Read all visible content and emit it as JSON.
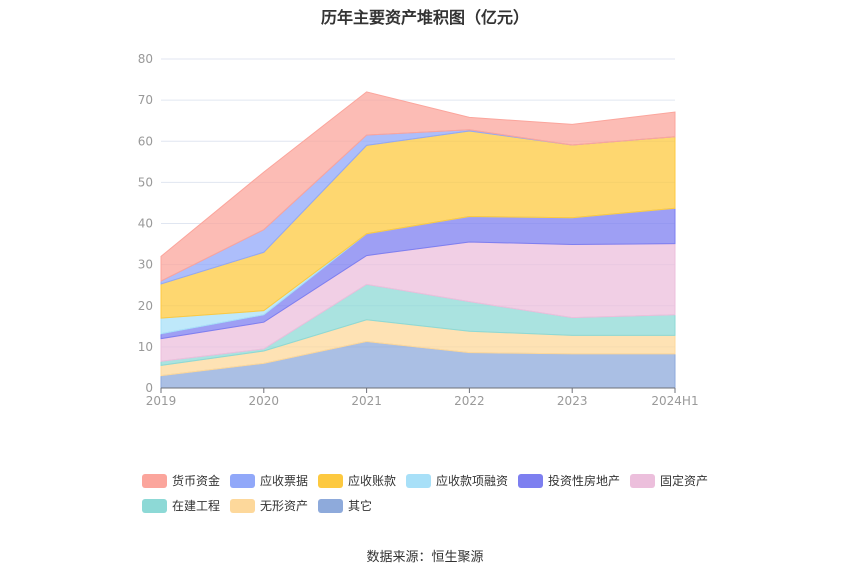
{
  "chart_data": {
    "type": "area",
    "stacked": true,
    "title": "历年主要资产堆积图（亿元）",
    "categories": [
      "2019",
      "2020",
      "2021",
      "2022",
      "2023",
      "2024H1"
    ],
    "ylim": [
      0,
      80
    ],
    "yticks": [
      0,
      10,
      20,
      30,
      40,
      50,
      60,
      70,
      80
    ],
    "grid": true,
    "legend_position": "bottom",
    "series": [
      {
        "name": "其它",
        "color": "#8eaadb",
        "values": [
          3.0,
          6.0,
          11.3,
          8.6,
          8.3,
          8.3
        ]
      },
      {
        "name": "无形资产",
        "color": "#fdd89b",
        "values": [
          2.5,
          3.0,
          5.3,
          5.2,
          4.5,
          4.5
        ]
      },
      {
        "name": "在建工程",
        "color": "#8dd9d6",
        "values": [
          1.0,
          0.5,
          8.6,
          7.2,
          4.3,
          5.0
        ]
      },
      {
        "name": "固定资产",
        "color": "#ecbfdc",
        "values": [
          5.5,
          6.5,
          7.0,
          14.5,
          17.8,
          17.3
        ]
      },
      {
        "name": "投资性房地产",
        "color": "#7d7ff0",
        "values": [
          1.2,
          1.8,
          5.3,
          6.2,
          6.5,
          8.6
        ]
      },
      {
        "name": "应收款项融资",
        "color": "#a8e0f8",
        "values": [
          3.8,
          1.0,
          0.0,
          0.0,
          0.0,
          0.0
        ]
      },
      {
        "name": "应收账款",
        "color": "#fdc940",
        "values": [
          8.3,
          14.2,
          21.5,
          20.8,
          17.7,
          17.4
        ]
      },
      {
        "name": "应收票据",
        "color": "#91a8f9",
        "values": [
          0.7,
          5.5,
          2.5,
          0.3,
          0.0,
          0.0
        ]
      },
      {
        "name": "货币资金",
        "color": "#fba59c",
        "values": [
          6.0,
          14.0,
          10.5,
          3.0,
          5.0,
          6.0
        ]
      }
    ]
  },
  "legend": {
    "order": [
      "货币资金",
      "应收票据",
      "应收账款",
      "应收款项融资",
      "投资性房地产",
      "固定资产",
      "在建工程",
      "无形资产",
      "其它"
    ]
  },
  "source": "数据来源：恒生聚源"
}
